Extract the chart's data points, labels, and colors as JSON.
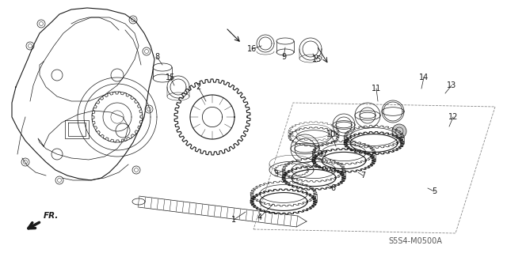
{
  "background_color": "#ffffff",
  "line_color": "#1a1a1a",
  "diagram_code": "S5S4-M0500A",
  "fr_label": "FR."
}
